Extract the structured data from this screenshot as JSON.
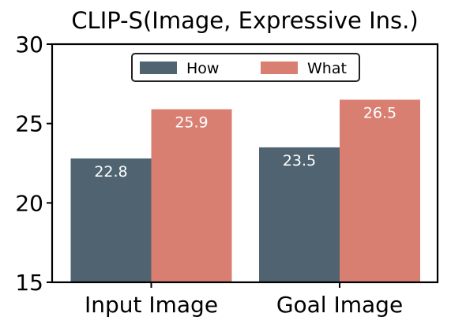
{
  "chart_data": {
    "type": "bar",
    "title": "CLIP-S(Image, Expressive Ins.)",
    "xlabel": "",
    "ylabel": "",
    "categories": [
      "Input Image",
      "Goal Image"
    ],
    "series": [
      {
        "name": "How",
        "values": [
          22.8,
          23.5
        ],
        "color": "#4f6470"
      },
      {
        "name": "What",
        "values": [
          25.9,
          26.5
        ],
        "color": "#d97f72"
      }
    ],
    "ylim": [
      15,
      30
    ],
    "yticks": [
      "15",
      "20",
      "25",
      "30"
    ],
    "data_labels": [
      [
        "22.8",
        "23.5"
      ],
      [
        "25.9",
        "26.5"
      ]
    ],
    "legend_position": "top-center",
    "grid": false
  }
}
